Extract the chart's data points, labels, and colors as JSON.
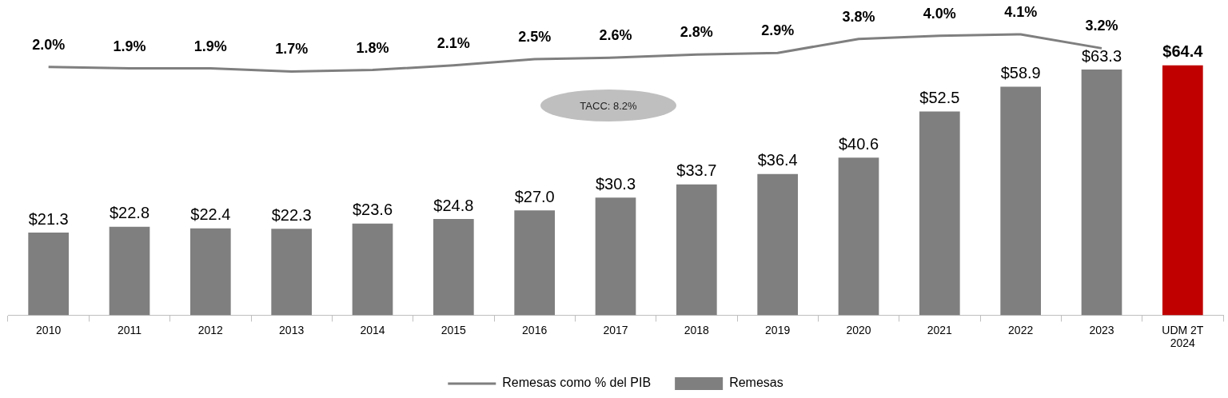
{
  "chart_data": {
    "type": "bar",
    "categories": [
      "2010",
      "2011",
      "2012",
      "2013",
      "2014",
      "2015",
      "2016",
      "2017",
      "2018",
      "2019",
      "2020",
      "2021",
      "2022",
      "2023",
      "UDM 2T\n2024"
    ],
    "series": [
      {
        "name": "Remesas",
        "color": "#7f7f7f",
        "colors": [
          "#7f7f7f",
          "#7f7f7f",
          "#7f7f7f",
          "#7f7f7f",
          "#7f7f7f",
          "#7f7f7f",
          "#7f7f7f",
          "#7f7f7f",
          "#7f7f7f",
          "#7f7f7f",
          "#7f7f7f",
          "#7f7f7f",
          "#7f7f7f",
          "#7f7f7f",
          "#c00000"
        ],
        "values": [
          21.3,
          22.8,
          22.4,
          22.3,
          23.6,
          24.8,
          27.0,
          30.3,
          33.7,
          36.4,
          40.6,
          52.5,
          58.9,
          63.3,
          64.4
        ],
        "value_labels": [
          "$21.3",
          "$22.8",
          "$22.4",
          "$22.3",
          "$23.6",
          "$24.8",
          "$27.0",
          "$30.3",
          "$33.7",
          "$36.4",
          "$40.6",
          "$52.5",
          "$58.9",
          "$63.3",
          "$64.4"
        ]
      },
      {
        "name": "Remesas como % del PIB",
        "type": "line",
        "axis": "y2",
        "color": "#7f7f7f",
        "values": [
          2.0,
          1.9,
          1.9,
          1.7,
          1.8,
          2.1,
          2.5,
          2.6,
          2.8,
          2.9,
          3.8,
          4.0,
          4.1,
          3.2,
          null
        ],
        "value_labels": [
          "2.0%",
          "1.9%",
          "1.9%",
          "1.7%",
          "1.8%",
          "2.1%",
          "2.5%",
          "2.6%",
          "2.8%",
          "2.9%",
          "3.8%",
          "4.0%",
          "4.1%",
          "3.2%",
          null
        ]
      }
    ],
    "tick_labels": "x",
    "grid": false,
    "legend": "bottom",
    "marker": "none",
    "annotations": [
      "TACC: 8.2%"
    ]
  }
}
